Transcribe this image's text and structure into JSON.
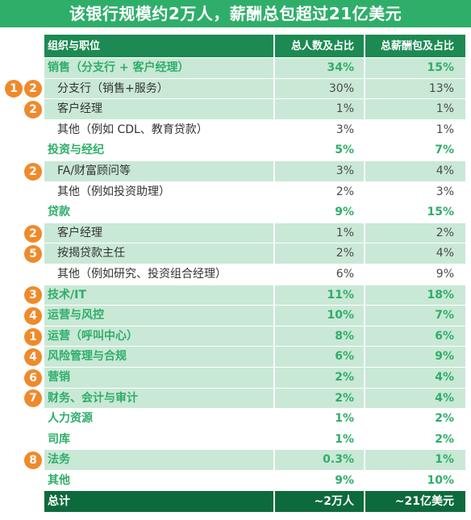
{
  "title": "该银行规模约2万人，薪酬总包超过21亿美元",
  "colors": {
    "title_bg": "#2fae6a",
    "header_bg": "#1c8a52",
    "total_bg": "#0d6a3c",
    "highlight": "#c9e8d6",
    "category_text": "#2fae6a",
    "badge": "#ef8a2b"
  },
  "header": {
    "col1": "组织与职位",
    "col2": "总人数及占比",
    "col3": "总薪酬包及占比"
  },
  "rows": [
    {
      "label": "销售（分支行 + 客户经理）",
      "headcount": "34%",
      "comp": "15%",
      "type": "cat",
      "hl": true
    },
    {
      "label": "分支行（销售+服务）",
      "headcount": "30%",
      "comp": "13%",
      "type": "sub",
      "hl": true,
      "badges": [
        "1",
        "2"
      ]
    },
    {
      "label": "客户经理",
      "headcount": "1%",
      "comp": "1%",
      "type": "sub",
      "hl": true,
      "badges": [
        "2"
      ]
    },
    {
      "label": "其他（例如 CDL、教育贷款）",
      "headcount": "3%",
      "comp": "1%",
      "type": "sub",
      "hl": false
    },
    {
      "label": "投资与经纪",
      "headcount": "5%",
      "comp": "7%",
      "type": "cat",
      "hl": false
    },
    {
      "label": "FA/财富顾问等",
      "headcount": "3%",
      "comp": "4%",
      "type": "sub",
      "hl": true,
      "badges": [
        "2"
      ]
    },
    {
      "label": "其他（例如投资助理）",
      "headcount": "2%",
      "comp": "3%",
      "type": "sub",
      "hl": false
    },
    {
      "label": "贷款",
      "headcount": "9%",
      "comp": "15%",
      "type": "cat",
      "hl": false
    },
    {
      "label": "客户经理",
      "headcount": "1%",
      "comp": "2%",
      "type": "sub",
      "hl": true,
      "badges": [
        "2"
      ]
    },
    {
      "label": "按揭贷款主任",
      "headcount": "2%",
      "comp": "4%",
      "type": "sub",
      "hl": true,
      "badges": [
        "5"
      ]
    },
    {
      "label": "其他（例如研究、投资组合经理）",
      "headcount": "6%",
      "comp": "9%",
      "type": "sub",
      "hl": false
    },
    {
      "label": "技术/IT",
      "headcount": "11%",
      "comp": "18%",
      "type": "cat",
      "hl": true,
      "badges": [
        "3"
      ]
    },
    {
      "label": "运营与风控",
      "headcount": "10%",
      "comp": "7%",
      "type": "cat",
      "hl": true,
      "badges": [
        "4"
      ]
    },
    {
      "label": "运营（呼叫中心）",
      "headcount": "8%",
      "comp": "6%",
      "type": "cat",
      "hl": true,
      "badges": [
        "1"
      ]
    },
    {
      "label": "风险管理与合规",
      "headcount": "6%",
      "comp": "9%",
      "type": "cat",
      "hl": true,
      "badges": [
        "4"
      ]
    },
    {
      "label": "营销",
      "headcount": "2%",
      "comp": "4%",
      "type": "cat",
      "hl": true,
      "badges": [
        "6"
      ]
    },
    {
      "label": "财务、会计与审计",
      "headcount": "2%",
      "comp": "4%",
      "type": "cat",
      "hl": true,
      "badges": [
        "7"
      ]
    },
    {
      "label": "人力资源",
      "headcount": "1%",
      "comp": "2%",
      "type": "cat",
      "hl": false
    },
    {
      "label": "司库",
      "headcount": "1%",
      "comp": "2%",
      "type": "cat",
      "hl": false
    },
    {
      "label": "法务",
      "headcount": "0.3%",
      "comp": "1%",
      "type": "cat",
      "hl": true,
      "badges": [
        "8"
      ]
    },
    {
      "label": "其他",
      "headcount": "9%",
      "comp": "10%",
      "type": "cat",
      "hl": false
    }
  ],
  "total": {
    "label": "总计",
    "headcount": "~2万人",
    "comp": "~21亿美元"
  }
}
